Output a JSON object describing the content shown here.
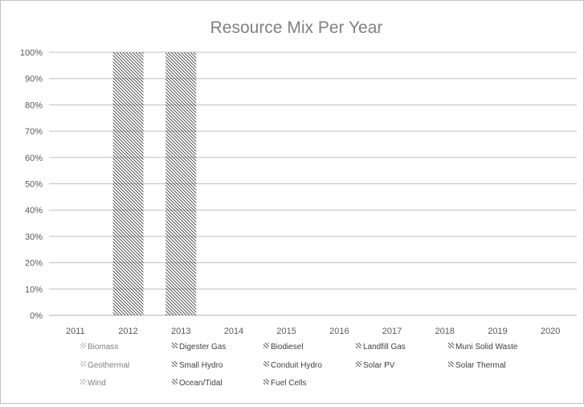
{
  "chart_data": {
    "type": "bar",
    "stacked": true,
    "title": "Resource Mix Per Year",
    "xlabel": "",
    "ylabel": "",
    "ylim": [
      0,
      1
    ],
    "y_ticks": [
      "0%",
      "10%",
      "20%",
      "30%",
      "40%",
      "50%",
      "60%",
      "70%",
      "80%",
      "90%",
      "100%"
    ],
    "categories": [
      "2011",
      "2012",
      "2013",
      "2014",
      "2015",
      "2016",
      "2017",
      "2018",
      "2019",
      "2020"
    ],
    "grid": true,
    "legend_position": "bottom",
    "series": [
      {
        "name": "Biomass",
        "values": [
          0,
          0,
          0,
          0,
          0,
          0,
          0,
          0,
          0,
          0
        ],
        "pattern": "hatch-light"
      },
      {
        "name": "Digester Gas",
        "values": [
          0,
          0,
          0,
          0,
          0,
          0,
          0,
          0,
          0,
          0
        ],
        "pattern": "hatch"
      },
      {
        "name": "Biodiesel",
        "values": [
          0,
          0,
          0,
          0,
          0,
          0,
          0,
          0,
          0,
          0
        ],
        "pattern": "hatch"
      },
      {
        "name": "Landfill Gas",
        "values": [
          0,
          0,
          0,
          0,
          0,
          0,
          0,
          0,
          0,
          0
        ],
        "pattern": "hatch"
      },
      {
        "name": "Muni Solid Waste",
        "values": [
          0,
          0,
          0,
          0,
          0,
          0,
          0,
          0,
          0,
          0
        ],
        "pattern": "hatch"
      },
      {
        "name": "Geothermal",
        "values": [
          0,
          0,
          0,
          0,
          0,
          0,
          0,
          0,
          0,
          0
        ],
        "pattern": "hatch-light"
      },
      {
        "name": "Small Hydro",
        "values": [
          0,
          1,
          1,
          0,
          0,
          0,
          0,
          0,
          0,
          0
        ],
        "pattern": "hatch"
      },
      {
        "name": "Conduit Hydro",
        "values": [
          0,
          0,
          0,
          0,
          0,
          0,
          0,
          0,
          0,
          0
        ],
        "pattern": "hatch"
      },
      {
        "name": "Solar PV",
        "values": [
          0,
          0,
          0,
          0,
          0,
          0,
          0,
          0,
          0,
          0
        ],
        "pattern": "hatch"
      },
      {
        "name": "Solar Thermal",
        "values": [
          0,
          0,
          0,
          0,
          0,
          0,
          0,
          0,
          0,
          0
        ],
        "pattern": "hatch"
      },
      {
        "name": "Wind",
        "values": [
          0,
          0,
          0,
          0,
          0,
          0,
          0,
          0,
          0,
          0
        ],
        "pattern": "hatch-light"
      },
      {
        "name": "Ocean/Tidal",
        "values": [
          0,
          0,
          0,
          0,
          0,
          0,
          0,
          0,
          0,
          0
        ],
        "pattern": "hatch"
      },
      {
        "name": "Fuel Cells",
        "values": [
          0,
          0,
          0,
          0,
          0,
          0,
          0,
          0,
          0,
          0
        ],
        "pattern": "hatch"
      }
    ],
    "colors": {
      "title": "#808080",
      "tick_label": "#595959",
      "grid": "#bfbfbf",
      "hatch": "#404040",
      "hatch_light": "#a6a6a6"
    }
  }
}
